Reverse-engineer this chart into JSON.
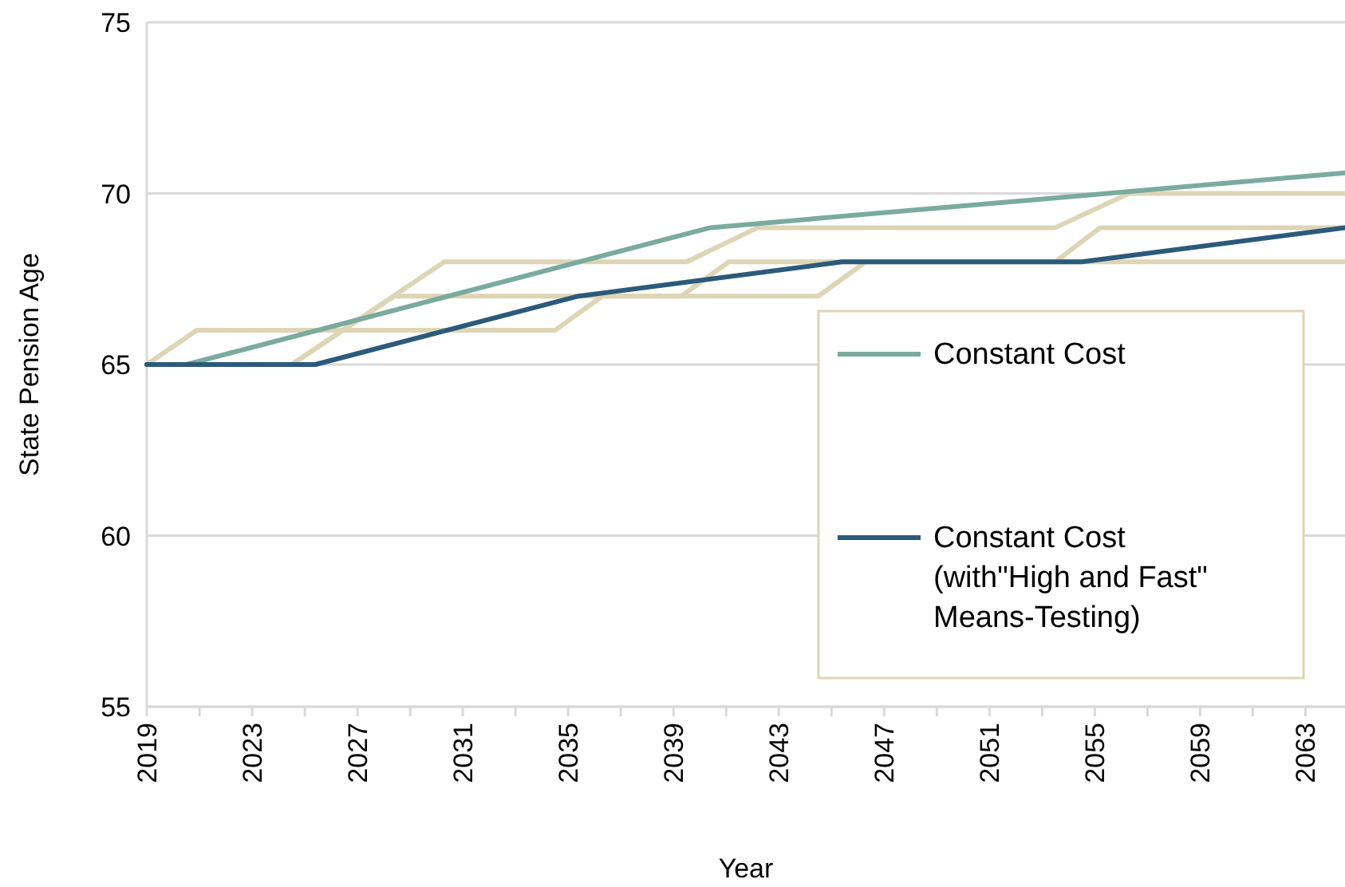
{
  "chart_data": {
    "type": "line",
    "xlabel": "Year",
    "ylabel": "State Pension Age",
    "xlim": [
      2019,
      2064.5
    ],
    "ylim": [
      55,
      75
    ],
    "yticks": [
      55,
      60,
      65,
      70,
      75
    ],
    "xticks": [
      2019,
      {
        "value": 2021,
        "label": null
      },
      2023,
      {
        "value": 2025,
        "label": null
      },
      2027,
      {
        "value": 2029,
        "label": null
      },
      2031,
      {
        "value": 2033,
        "label": null
      },
      2035,
      {
        "value": 2037,
        "label": null
      },
      2039,
      {
        "value": 2041,
        "label": null
      },
      2043,
      {
        "value": 2045,
        "label": null
      },
      2047,
      {
        "value": 2049,
        "label": null
      },
      2051,
      {
        "value": 2053,
        "label": null
      },
      2055,
      {
        "value": 2057,
        "label": null
      },
      2059,
      {
        "value": 2061,
        "label": null
      },
      2063
    ],
    "grid": "y",
    "legend": "right",
    "line_style": "solid",
    "marker": "none",
    "series": [
      {
        "color": "#ddd5b5",
        "x": [
          2019,
          2020.9,
          2034.5,
          2036.3,
          2044.5,
          2046.3,
          2064.5
        ],
        "values": [
          65,
          66,
          66,
          67,
          67,
          68,
          68
        ]
      },
      {
        "color": "#ddd5b5",
        "x": [
          2019,
          2024.5,
          2030.3,
          2039.5,
          2042.2,
          2053.5,
          2056.3,
          2064.5
        ],
        "values": [
          65,
          65,
          68,
          68,
          69,
          69,
          70,
          70
        ]
      },
      {
        "color": "#ddd5b5",
        "x": [
          2019,
          2024.5,
          2028.4,
          2039.3,
          2041.1,
          2053.5,
          2055.2,
          2064.5
        ],
        "values": [
          65,
          65,
          67,
          67,
          68,
          68,
          69,
          69
        ]
      },
      {
        "name": "Constant Cost",
        "color": "#7aab9e",
        "x": [
          2019,
          2020.5,
          2040.4,
          2064.5
        ],
        "values": [
          65,
          65,
          69,
          70.6
        ]
      },
      {
        "name": "Constant Cost (with\"High and Fast\" Means-Testing)",
        "color": "#2c5a7a",
        "x": [
          2019,
          2025.4,
          2035.4,
          2045.4,
          2054.5,
          2064.5
        ],
        "values": [
          65,
          65,
          67,
          68,
          68,
          69
        ]
      }
    ]
  }
}
